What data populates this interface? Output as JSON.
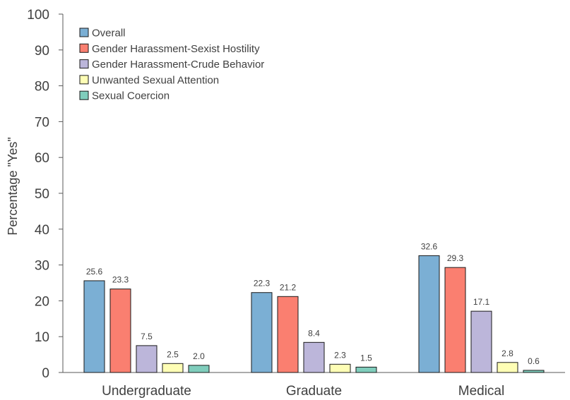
{
  "chart_data": {
    "type": "bar",
    "title": "",
    "xlabel": "",
    "ylabel": "Percentage \"Yes\"",
    "ylim": [
      0,
      100
    ],
    "yticks": [
      0,
      10,
      20,
      30,
      40,
      50,
      60,
      70,
      80,
      90,
      100
    ],
    "grid": false,
    "legend_position": "top-left",
    "categories": [
      "Undergraduate",
      "Graduate",
      "Medical"
    ],
    "series": [
      {
        "name": "Overall",
        "color": "#7bafd4",
        "values": [
          25.6,
          22.3,
          32.6
        ],
        "labels": [
          "25.6",
          "22.3",
          "32.6"
        ]
      },
      {
        "name": "Gender Harassment-Sexist Hostility",
        "color": "#fa7f70",
        "values": [
          23.3,
          21.2,
          29.3
        ],
        "labels": [
          "23.3",
          "21.2",
          "29.3"
        ]
      },
      {
        "name": "Gender Harassment-Crude Behavior",
        "color": "#bcb6da",
        "values": [
          7.5,
          8.4,
          17.1
        ],
        "labels": [
          "7.5",
          "8.4",
          "17.1"
        ]
      },
      {
        "name": "Unwanted Sexual Attention",
        "color": "#fefeb5",
        "values": [
          2.5,
          2.3,
          2.8
        ],
        "labels": [
          "2.5",
          "2.3",
          "2.8"
        ]
      },
      {
        "name": "Sexual Coercion",
        "color": "#7fcdbc",
        "values": [
          2.0,
          1.5,
          0.6
        ],
        "labels": [
          "2.0",
          "1.5",
          "0.6"
        ]
      }
    ]
  }
}
